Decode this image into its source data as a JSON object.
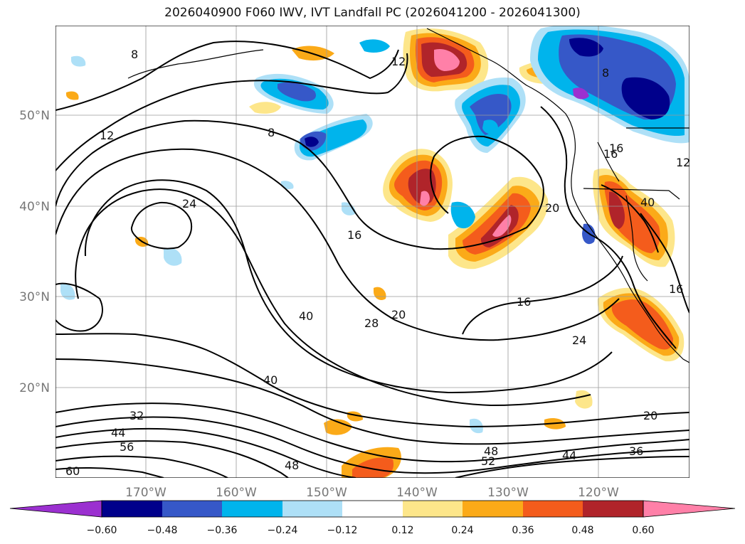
{
  "title": "2026040900 F060 IWV, IVT Landfall PC (2026041200 - 2026041300)",
  "map": {
    "lon_ticks": [
      "170°W",
      "160°W",
      "150°W",
      "140°W",
      "130°W",
      "120°W"
    ],
    "lat_ticks": [
      "50°N",
      "40°N",
      "30°N",
      "20°N"
    ],
    "contour_labels": [
      "8",
      "12",
      "12",
      "24",
      "16",
      "16",
      "20",
      "28",
      "40",
      "40",
      "32",
      "44",
      "56",
      "60",
      "48",
      "52",
      "48",
      "44",
      "36",
      "24",
      "20",
      "16",
      "20",
      "8",
      "16",
      "16",
      "8",
      "12",
      "40"
    ]
  },
  "colorbar": {
    "tick_labels": [
      "−0.60",
      "−0.48",
      "−0.36",
      "−0.24",
      "−0.12",
      "0.12",
      "0.24",
      "0.36",
      "0.48",
      "0.60"
    ],
    "colors": [
      "#9b30d0",
      "#00008b",
      "#3658c8",
      "#00b4ec",
      "#aee0f7",
      "#ffffff",
      "#fde68a",
      "#fbaa18",
      "#f45c1c",
      "#b0242a",
      "#ff80a8"
    ]
  },
  "colors": {
    "pos_light": "#fde68a",
    "pos_orange": "#fbaa18",
    "pos_red_orange": "#f45c1c",
    "pos_dark_red": "#b0242a",
    "pos_pink": "#ff80a8",
    "neg_light": "#aee0f7",
    "neg_cyan": "#00b4ec",
    "neg_blue": "#3658c8",
    "neg_navy": "#00008b",
    "neg_purple": "#9b30d0"
  }
}
